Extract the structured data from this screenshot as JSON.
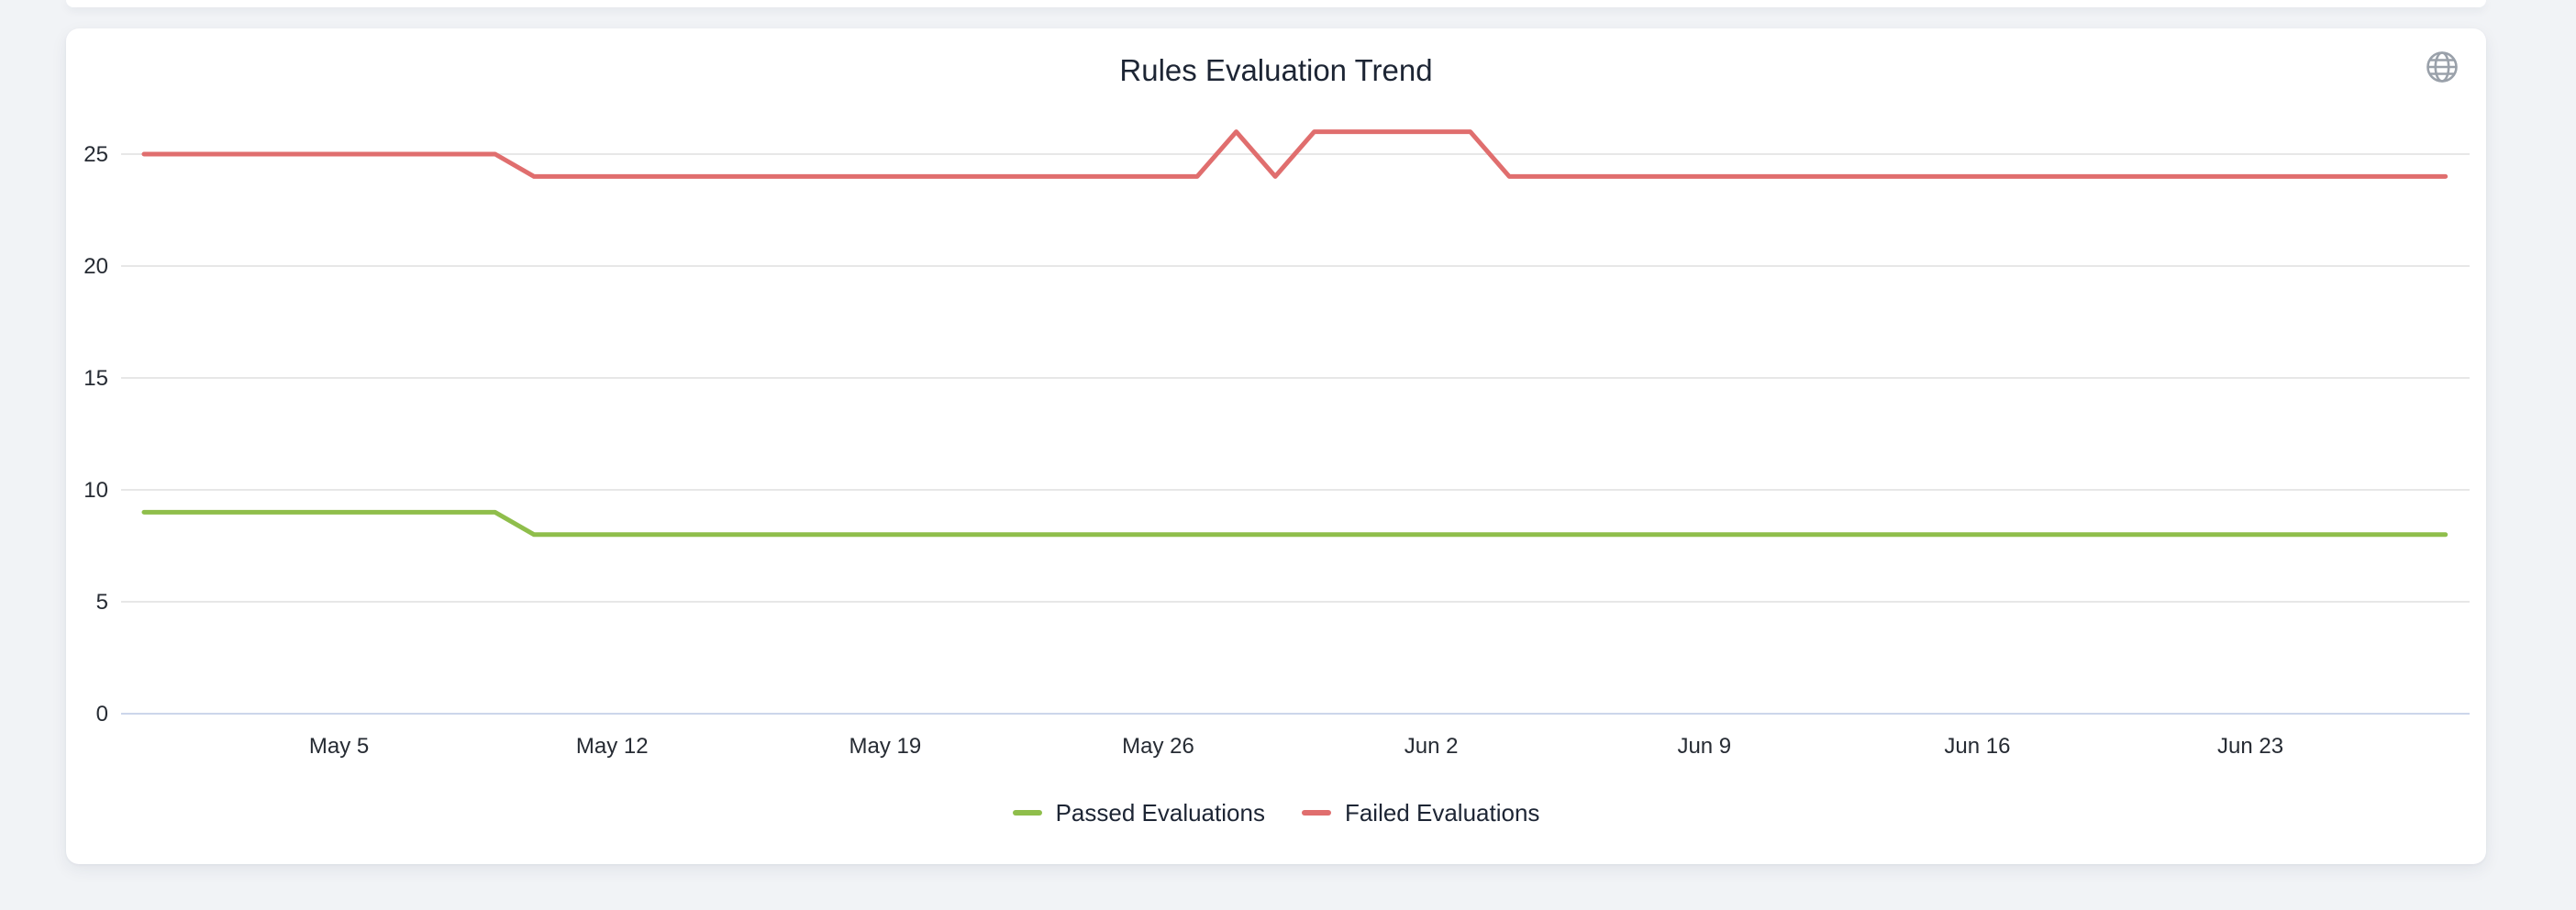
{
  "card": {
    "title": "Rules Evaluation Trend",
    "icons": {
      "top_right": "globe"
    }
  },
  "colors": {
    "page_background": "#f1f3f6",
    "card_background": "#ffffff",
    "gridline": "#e7e7e7",
    "x_axis_line": "#ccd6eb",
    "tick_text": "#262b33",
    "title_text": "#1d2534",
    "legend_text": "#1d2534",
    "globe_icon": "#9aa1aa",
    "passed_line": "#8fbe4b",
    "failed_line": "#e06e6e"
  },
  "chart_data": {
    "type": "line",
    "title": "Rules Evaluation Trend",
    "xlabel": "",
    "ylabel": "",
    "grid": true,
    "legend_position": "bottom",
    "ylim": [
      0,
      27
    ],
    "yticks": [
      0,
      5,
      10,
      15,
      20,
      25
    ],
    "x_ticks": [
      {
        "label": "May 5",
        "day": 5
      },
      {
        "label": "May 12",
        "day": 12
      },
      {
        "label": "May 19",
        "day": 19
      },
      {
        "label": "May 26",
        "day": 26
      },
      {
        "label": "Jun 2",
        "day": 33
      },
      {
        "label": "Jun 9",
        "day": 40
      },
      {
        "label": "Jun 16",
        "day": 47
      },
      {
        "label": "Jun 23",
        "day": 54
      }
    ],
    "x": [
      "Apr 30",
      "May 1",
      "May 2",
      "May 3",
      "May 4",
      "May 5",
      "May 6",
      "May 7",
      "May 8",
      "May 9",
      "May 10",
      "May 11",
      "May 12",
      "May 13",
      "May 14",
      "May 15",
      "May 16",
      "May 17",
      "May 18",
      "May 19",
      "May 20",
      "May 21",
      "May 22",
      "May 23",
      "May 24",
      "May 25",
      "May 26",
      "May 27",
      "May 28",
      "May 29",
      "May 30",
      "May 31",
      "Jun 1",
      "Jun 2",
      "Jun 3",
      "Jun 4",
      "Jun 5",
      "Jun 6",
      "Jun 7",
      "Jun 8",
      "Jun 9",
      "Jun 10",
      "Jun 11",
      "Jun 12",
      "Jun 13",
      "Jun 14",
      "Jun 15",
      "Jun 16",
      "Jun 17",
      "Jun 18",
      "Jun 19",
      "Jun 20",
      "Jun 21",
      "Jun 22",
      "Jun 23",
      "Jun 24",
      "Jun 25",
      "Jun 26",
      "Jun 27",
      "Jun 28"
    ],
    "series": [
      {
        "name": "Passed Evaluations",
        "color": "#8fbe4b",
        "values": [
          9,
          9,
          9,
          9,
          9,
          9,
          9,
          9,
          9,
          9,
          8,
          8,
          8,
          8,
          8,
          8,
          8,
          8,
          8,
          8,
          8,
          8,
          8,
          8,
          8,
          8,
          8,
          8,
          8,
          8,
          8,
          8,
          8,
          8,
          8,
          8,
          8,
          8,
          8,
          8,
          8,
          8,
          8,
          8,
          8,
          8,
          8,
          8,
          8,
          8,
          8,
          8,
          8,
          8,
          8,
          8,
          8,
          8,
          8,
          8
        ]
      },
      {
        "name": "Failed Evaluations",
        "color": "#e06e6e",
        "values": [
          25,
          25,
          25,
          25,
          25,
          25,
          25,
          25,
          25,
          25,
          24,
          24,
          24,
          24,
          24,
          24,
          24,
          24,
          24,
          24,
          24,
          24,
          24,
          24,
          24,
          24,
          24,
          24,
          26,
          24,
          26,
          26,
          26,
          26,
          26,
          24,
          24,
          24,
          24,
          24,
          24,
          24,
          24,
          24,
          24,
          24,
          24,
          24,
          24,
          24,
          24,
          24,
          24,
          24,
          24,
          24,
          24,
          24,
          24,
          24
        ]
      }
    ]
  }
}
